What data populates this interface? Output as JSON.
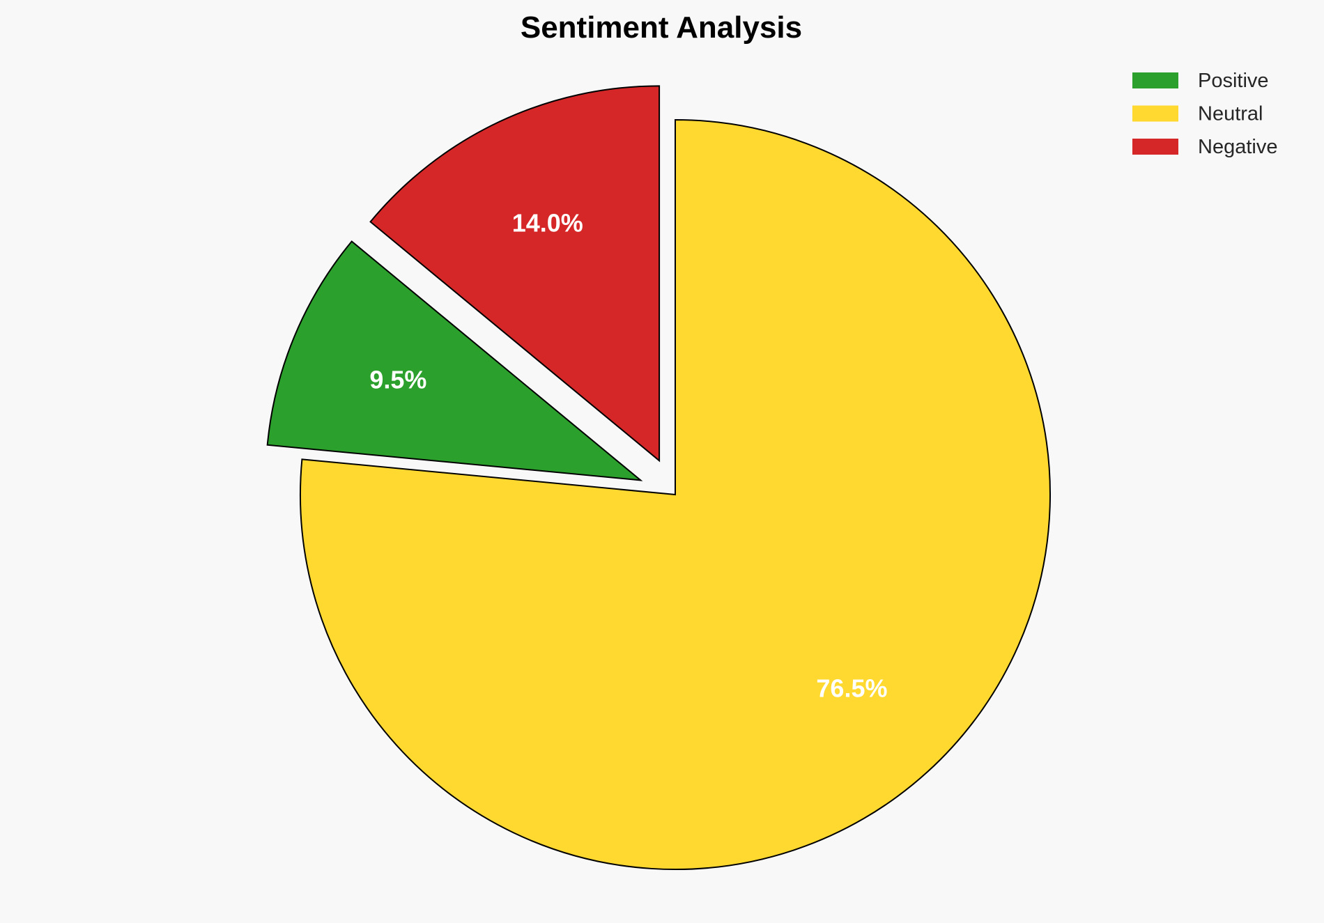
{
  "chart_data": {
    "type": "pie",
    "title": "Sentiment Analysis",
    "categories": [
      "Positive",
      "Neutral",
      "Negative"
    ],
    "values": [
      9.5,
      76.5,
      14.0
    ],
    "labels": [
      "9.5%",
      "76.5%",
      "14.0%"
    ],
    "colors": [
      "#2ca02c",
      "#ffd92f",
      "#d62728"
    ],
    "exploded": [
      "Positive",
      "Negative"
    ],
    "legend_position": "top-right",
    "edge_color": "#000000"
  }
}
